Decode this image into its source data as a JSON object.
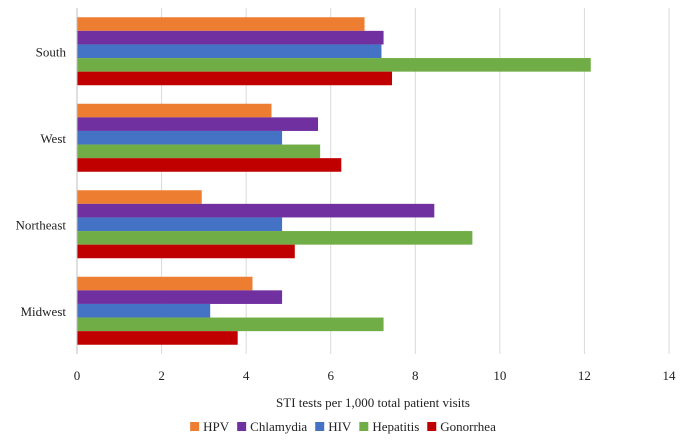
{
  "chart_data": {
    "type": "bar",
    "orientation": "horizontal",
    "categories": [
      "South",
      "West",
      "Northeast",
      "Midwest"
    ],
    "series": [
      {
        "name": "HPV",
        "color": "#ED7D31",
        "values": [
          6.8,
          4.6,
          2.95,
          4.15
        ]
      },
      {
        "name": "Chlamydia",
        "color": "#7030A0",
        "values": [
          7.25,
          5.7,
          8.45,
          4.85
        ]
      },
      {
        "name": "HIV",
        "color": "#4472C4",
        "values": [
          7.2,
          4.85,
          4.85,
          3.15
        ]
      },
      {
        "name": "Hepatitis",
        "color": "#70AD47",
        "values": [
          12.15,
          5.75,
          9.35,
          7.25
        ]
      },
      {
        "name": "Gonorrhea",
        "color": "#C00000",
        "values": [
          7.45,
          6.25,
          5.15,
          3.8
        ]
      }
    ],
    "xlabel": "STI tests per 1,000 total patient visits",
    "xlim": [
      0,
      14
    ],
    "xticks": [
      "0",
      "2",
      "4",
      "6",
      "8",
      "10",
      "12",
      "14"
    ],
    "grid": true,
    "legend": "bottom"
  }
}
